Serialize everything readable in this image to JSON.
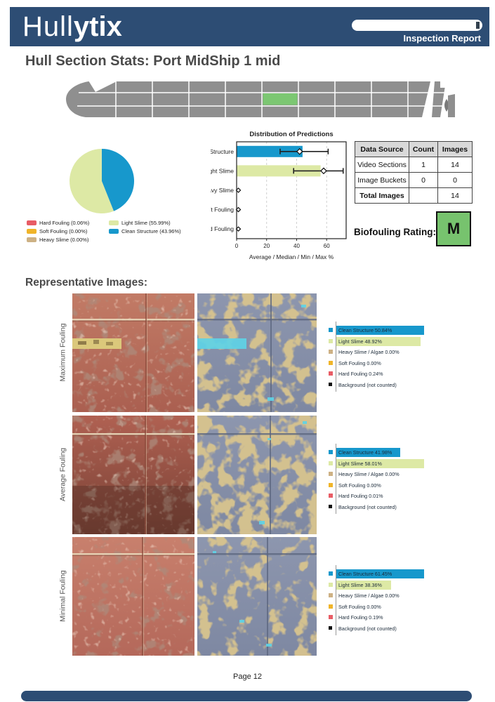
{
  "header": {
    "logo_thin": "Hull",
    "logo_bold": "ytix",
    "report_label": "Inspection Report"
  },
  "page": {
    "title": "Hull Section Stats: Port MidShip 1 mid",
    "footer": "Page 12"
  },
  "colors": {
    "navy": "#2d4d74",
    "clean_structure": "#1798cc",
    "light_slime": "#dde9a5",
    "heavy_slime": "#cdb184",
    "soft_fouling": "#f0b429",
    "hard_fouling": "#e85c65",
    "background_class": "#111111",
    "ship_gray": "#8f8f8f",
    "section_highlight": "#7cc772",
    "rating_green": "#77c36e"
  },
  "ship": {
    "grid_rows": 3,
    "grid_columns": 10,
    "highlighted_row": 2,
    "highlighted_column": 6
  },
  "chart_data": [
    {
      "type": "pie",
      "title": "",
      "labels": [
        "Hard Fouling",
        "Soft Fouling",
        "Heavy Slime",
        "Light Slime",
        "Clean Structure"
      ],
      "values": [
        0.06,
        0.0,
        0.0,
        55.99,
        43.96
      ],
      "color_keys": [
        "hard_fouling",
        "soft_fouling",
        "heavy_slime",
        "light_slime",
        "clean_structure"
      ],
      "legend": [
        "Hard Fouling (0.06%)",
        "Soft Fouling (0.00%)",
        "Heavy Slime (0.00%)",
        "Light Slime (55.99%)",
        "Clean Structure (43.96%)"
      ],
      "start_angle": 90,
      "direction": "counterclockwise"
    },
    {
      "type": "bar",
      "orientation": "horizontal",
      "title": "Distribution of Predictions",
      "categories": [
        "Clean Structure",
        "Light Slime",
        "Heavy Slime",
        "Soft Fouling",
        "Hard Fouling"
      ],
      "average": [
        43.96,
        55.99,
        0,
        0,
        0
      ],
      "median": [
        42,
        58,
        0,
        0,
        0
      ],
      "min": [
        29,
        38,
        0,
        0,
        0
      ],
      "max": [
        61,
        71,
        0,
        0,
        0
      ],
      "bar_color_keys": [
        "clean_structure",
        "light_slime",
        null,
        null,
        null
      ],
      "xticks": [
        0,
        20,
        40,
        60
      ],
      "xlim": [
        0,
        73
      ],
      "xlabel": "Average / Median / Min / Max %",
      "grid": "dashed-vertical"
    }
  ],
  "table": {
    "headers": [
      "Data Source",
      "Count",
      "Images"
    ],
    "rows": [
      [
        "Video Sections",
        "1",
        "14"
      ],
      [
        "Image Buckets",
        "0",
        "0"
      ],
      [
        "Total Images",
        "",
        "14"
      ]
    ]
  },
  "biofouling": {
    "label": "Biofouling Rating:",
    "rating": "M"
  },
  "representative": {
    "title": "Representative Images:",
    "rows": [
      {
        "label": "Maximum Fouling",
        "legend": [
          {
            "text": "Clean Structure 50.84%",
            "value": 50.84,
            "color": "clean_structure"
          },
          {
            "text": "Light Slime 48.92%",
            "value": 48.92,
            "color": "light_slime"
          },
          {
            "text": "Heavy Slime / Algae 0.00%",
            "value": 0,
            "color": "heavy_slime"
          },
          {
            "text": "Soft Fouling 0.00%",
            "value": 0,
            "color": "soft_fouling"
          },
          {
            "text": "Hard Fouling 0.24%",
            "value": 0.24,
            "color": "hard_fouling"
          },
          {
            "text": "Background (not counted)",
            "value": null,
            "color": "background_class"
          }
        ]
      },
      {
        "label": "Average Fouling",
        "legend": [
          {
            "text": "Clean Structure 41.98%",
            "value": 41.98,
            "color": "clean_structure"
          },
          {
            "text": "Light Slime 58.01%",
            "value": 58.01,
            "color": "light_slime"
          },
          {
            "text": "Heavy Slime / Algae 0.00%",
            "value": 0,
            "color": "heavy_slime"
          },
          {
            "text": "Soft Fouling 0.00%",
            "value": 0,
            "color": "soft_fouling"
          },
          {
            "text": "Hard Fouling 0.01%",
            "value": 0.01,
            "color": "hard_fouling"
          },
          {
            "text": "Background (not counted)",
            "value": null,
            "color": "background_class"
          }
        ]
      },
      {
        "label": "Minimal Fouling",
        "legend": [
          {
            "text": "Clean Structure 61.45%",
            "value": 61.45,
            "color": "clean_structure"
          },
          {
            "text": "Light Slime 38.36%",
            "value": 38.36,
            "color": "light_slime"
          },
          {
            "text": "Heavy Slime / Algae 0.00%",
            "value": 0,
            "color": "heavy_slime"
          },
          {
            "text": "Soft Fouling 0.00%",
            "value": 0,
            "color": "soft_fouling"
          },
          {
            "text": "Hard Fouling 0.19%",
            "value": 0.19,
            "color": "hard_fouling"
          },
          {
            "text": "Background (not counted)",
            "value": null,
            "color": "background_class"
          }
        ]
      }
    ]
  }
}
